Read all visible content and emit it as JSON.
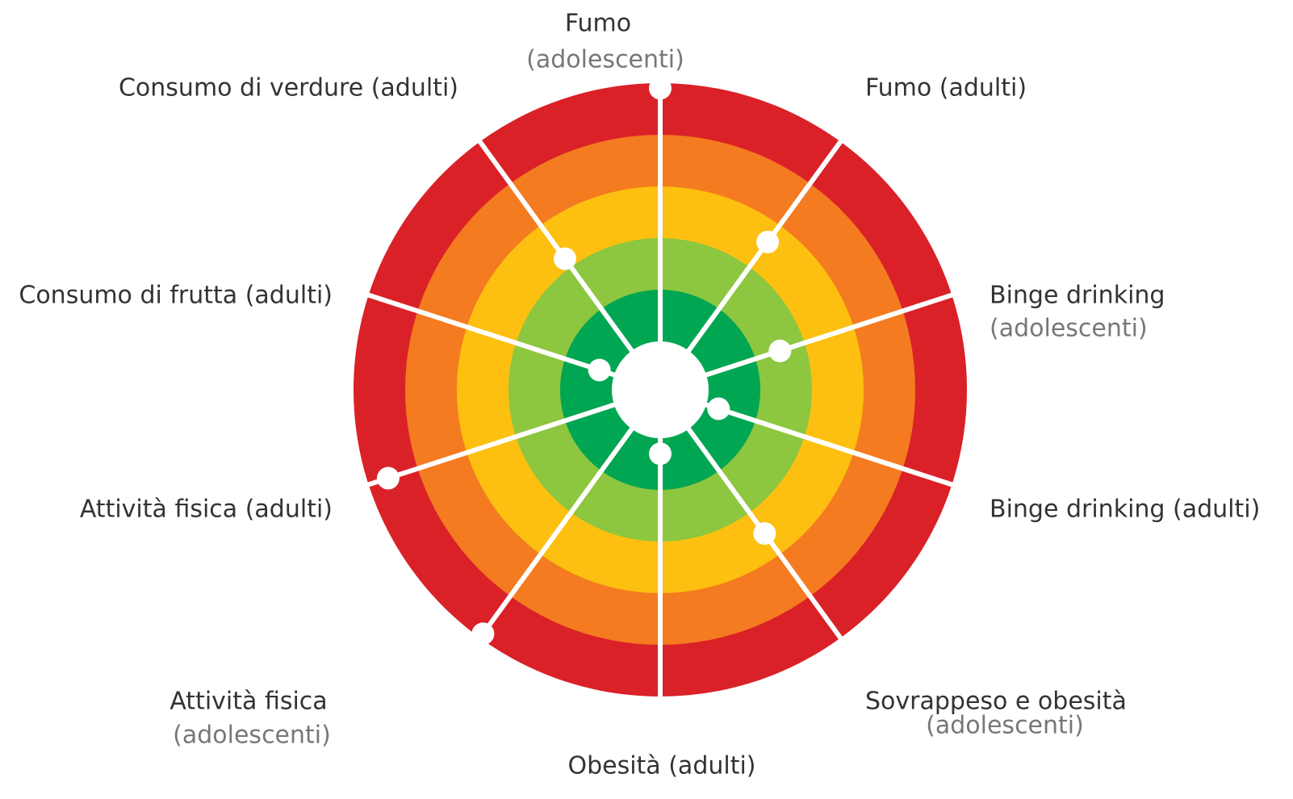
{
  "chart_data": {
    "type": "radial",
    "categories": [
      [
        "Fumo",
        "(adolescenti)"
      ],
      [
        "Fumo (adulti)"
      ],
      [
        "Binge drinking",
        "(adolescenti)"
      ],
      [
        "Binge drinking (adulti)"
      ],
      [
        "Sovrappeso e obesità",
        "(adolescenti)"
      ],
      [
        "Obesità (adulti)"
      ],
      [
        "Attività fisica",
        "(adolescenti)"
      ],
      [
        "Attività fisica (adulti)"
      ],
      [
        "Consumo di frutta (adulti)"
      ],
      [
        "Consumo di verdure (adulti)"
      ]
    ],
    "values": [
      4.9,
      2.6,
      1.5,
      0.25,
      2.5,
      0.3,
      4.9,
      4.6,
      0.3,
      2.2
    ],
    "rlim": [
      0,
      5
    ],
    "rticks": [
      0,
      1,
      2,
      3,
      4,
      5
    ],
    "band_colors": [
      "#00a651",
      "#8dc63f",
      "#fdc010",
      "#f47b20",
      "#da2128"
    ]
  }
}
